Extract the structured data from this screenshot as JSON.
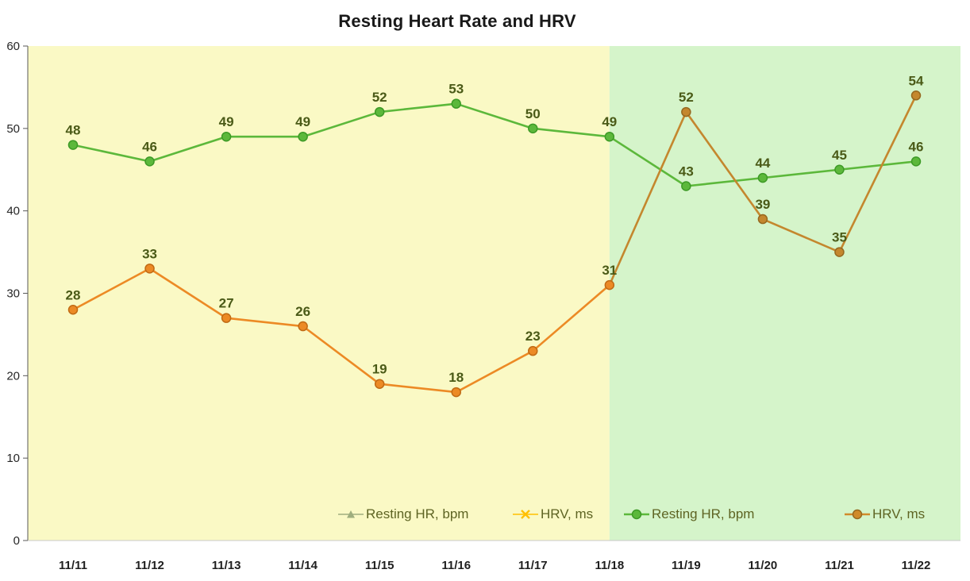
{
  "title": "Resting Heart Rate and HRV",
  "chart_data": {
    "type": "line",
    "title": "Resting Heart Rate and HRV",
    "categories": [
      "11/11",
      "11/12",
      "11/13",
      "11/14",
      "11/15",
      "11/16",
      "11/17",
      "11/18",
      "11/19",
      "11/20",
      "11/21",
      "11/22"
    ],
    "series": [
      {
        "name": "Resting HR, bpm",
        "values": [
          48,
          46,
          49,
          49,
          52,
          53,
          50,
          49,
          43,
          44,
          45,
          46
        ],
        "color": "#5CB83B",
        "marker_stroke": "#3D9A26",
        "marker": "circle"
      },
      {
        "name": "HRV, ms",
        "values": [
          28,
          33,
          27,
          26,
          19,
          18,
          23,
          31,
          52,
          39,
          35,
          54
        ],
        "color": "#EC8A25",
        "marker_stroke": "#C06A14",
        "alt_color": "#C4872E",
        "alt_marker_stroke": "#96681F",
        "alt_from": 7,
        "marker": "circle"
      }
    ],
    "ylim": [
      0,
      60
    ],
    "yticks": [
      0,
      10,
      20,
      30,
      40,
      50,
      60
    ],
    "grid": false,
    "data_labels": true,
    "data_label_color": "#4A5A17",
    "background_regions": [
      {
        "from_index": 0,
        "to_index": 7,
        "color": "#FAF9C5"
      },
      {
        "from_index": 7,
        "to_index": 11,
        "color": "#D5F4CA"
      }
    ],
    "legend_position": "bottom-inside",
    "legend": [
      {
        "label": "Resting HR, bpm",
        "marker": "triangle",
        "color": "#9FAE7E"
      },
      {
        "label": "HRV, ms",
        "marker": "x",
        "color": "#FFC000"
      },
      {
        "label": "Resting HR, bpm",
        "marker": "circle-line",
        "color": "#5CB83B",
        "stroke": "#3D9A26"
      },
      {
        "label": "HRV, ms",
        "marker": "circle-line",
        "color": "#D08A2A",
        "stroke": "#96681F"
      }
    ]
  }
}
